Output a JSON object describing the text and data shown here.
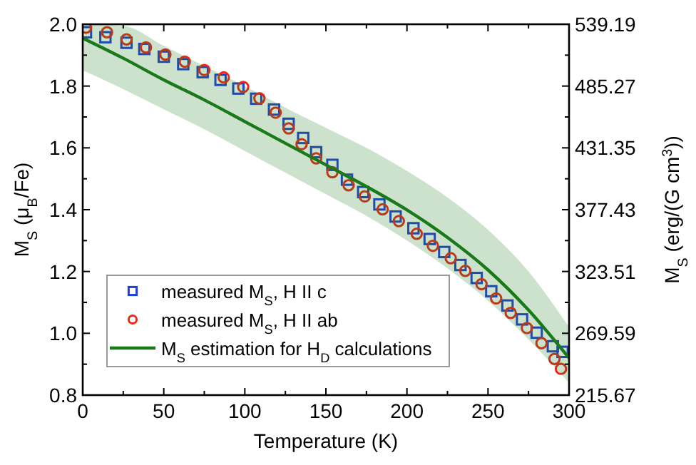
{
  "chart_data": {
    "type": "scatter",
    "xlabel": "Temperature (K)",
    "ylabel": "M$_{S}$ (μ$_{B}$/Fe)",
    "y2label": "M$_{S}$ (erg/(G cm$^{3}$))",
    "xlim": [
      0,
      300
    ],
    "xticks": [
      0,
      50,
      100,
      150,
      200,
      250,
      300
    ],
    "ylim": [
      0.8,
      2.0
    ],
    "yticks": [
      0.8,
      {
        "value": 1,
        "label": "1.0"
      },
      1.2,
      1.4,
      1.6,
      1.8,
      {
        "value": 2,
        "label": "2.0"
      }
    ],
    "y2lim": [
      215.67,
      539.19
    ],
    "y2ticks": [
      215.67,
      269.59,
      323.51,
      377.43,
      431.35,
      485.27,
      539.19
    ],
    "legend": "bottom left",
    "grid": false,
    "series": [
      {
        "name": "measured M$_{S}$, H II c",
        "type": "scatter",
        "marker": "square",
        "color": "#1f3fd0",
        "x": [
          2,
          14,
          27,
          38,
          50,
          62,
          74,
          85,
          96,
          107,
          118,
          127,
          136,
          144,
          154,
          163,
          173,
          183,
          193,
          204,
          214,
          223,
          233,
          243,
          252,
          262,
          271,
          280,
          290,
          296
        ],
        "values": [
          1.974,
          1.958,
          1.94,
          1.92,
          1.895,
          1.871,
          1.845,
          1.82,
          1.792,
          1.759,
          1.724,
          1.678,
          1.632,
          1.586,
          1.545,
          1.497,
          1.457,
          1.417,
          1.378,
          1.34,
          1.305,
          1.263,
          1.221,
          1.179,
          1.136,
          1.09,
          1.045,
          1.002,
          0.958,
          0.94
        ]
      },
      {
        "name": "measured M$_{S}$, H II ab",
        "type": "scatter",
        "marker": "circle",
        "color": "#e8281a",
        "x": [
          2,
          15,
          27,
          39,
          51,
          63,
          75,
          87,
          99,
          109,
          119,
          127,
          135,
          144,
          154,
          164,
          174,
          185,
          195,
          206,
          216,
          227,
          236,
          246,
          255,
          264,
          274,
          283,
          291,
          295
        ],
        "values": [
          1.989,
          1.974,
          1.951,
          1.925,
          1.902,
          1.879,
          1.852,
          1.828,
          1.797,
          1.76,
          1.714,
          1.663,
          1.612,
          1.566,
          1.521,
          1.479,
          1.443,
          1.401,
          1.363,
          1.322,
          1.283,
          1.243,
          1.202,
          1.159,
          1.113,
          1.066,
          1.017,
          0.968,
          0.917,
          0.885
        ]
      },
      {
        "name": "M$_{S}$ estimation for H$_{D}$ calculations",
        "type": "line",
        "marker": "none",
        "color": "#1a7a1a",
        "x": [
          0,
          25,
          50,
          75,
          100,
          125,
          150,
          175,
          200,
          225,
          250,
          275,
          300
        ],
        "values": [
          1.955,
          1.89,
          1.82,
          1.755,
          1.685,
          1.615,
          1.545,
          1.475,
          1.399,
          1.31,
          1.205,
          1.075,
          0.92
        ],
        "upper": [
          2.0,
          1.995,
          1.93,
          1.865,
          1.8,
          1.73,
          1.665,
          1.6,
          1.525,
          1.44,
          1.335,
          1.2,
          1.02
        ],
        "lower": [
          1.851,
          1.79,
          1.725,
          1.66,
          1.59,
          1.52,
          1.45,
          1.38,
          1.3,
          1.21,
          1.105,
          0.98,
          0.84
        ]
      }
    ]
  }
}
